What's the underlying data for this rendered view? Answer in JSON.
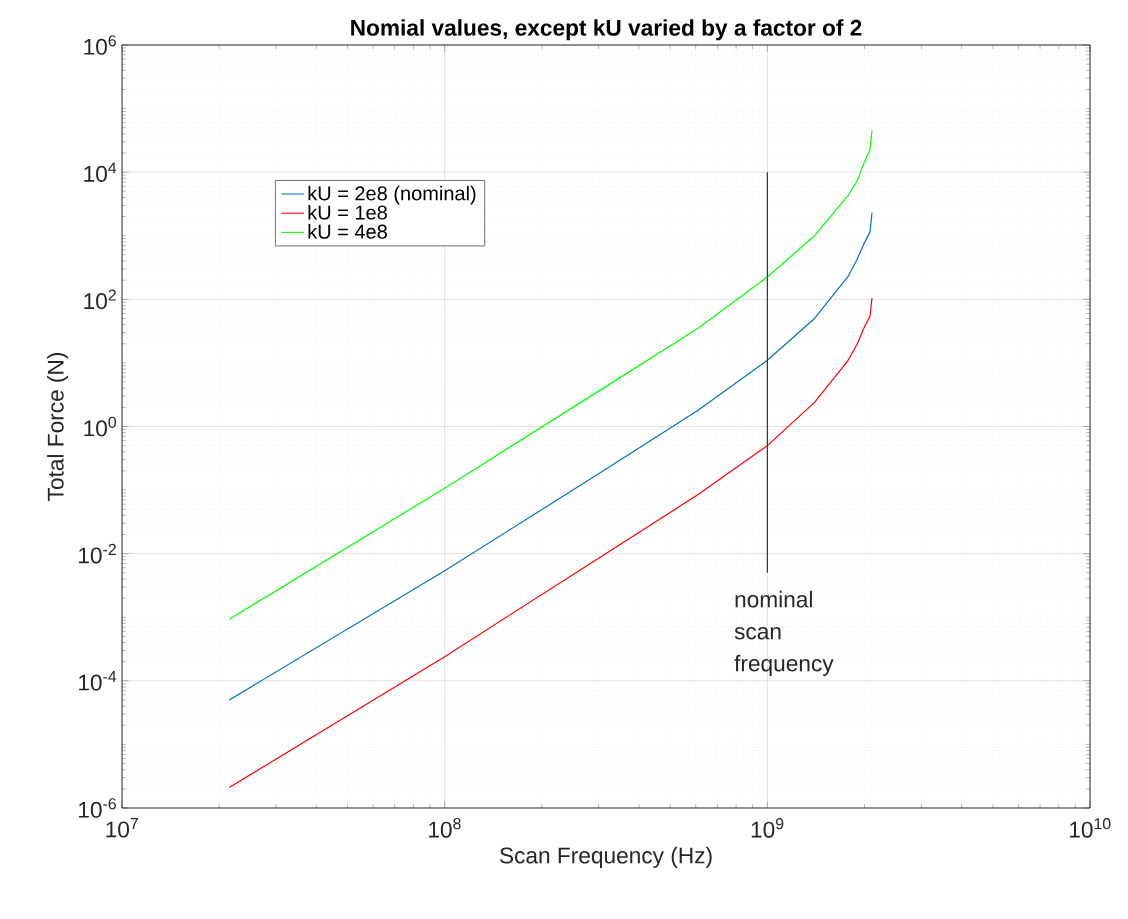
{
  "chart_data": {
    "type": "line",
    "title": "Nomial values, except kU varied by a factor of 2",
    "xlabel": "Scan Frequency (Hz)",
    "ylabel": "Total Force (N)",
    "log": "xy",
    "grid": true,
    "legend": "top left",
    "marker": "none",
    "line_style": "solid",
    "xlim": [
      10000000.0,
      10000000000.0
    ],
    "ylim": [
      1e-06,
      1000000.0
    ],
    "xticks": [
      {
        "value": 10000000.0,
        "label": "10$^{7}$"
      },
      {
        "value": 100000000.0,
        "label": "10$^{8}$"
      },
      {
        "value": 1000000000.0,
        "label": "10$^{9}$"
      },
      {
        "value": 10000000000.0,
        "label": "10$^{10}$"
      }
    ],
    "yticks": [
      {
        "value": 1e-06,
        "label": "10$^{-6}$"
      },
      {
        "value": 0.0001,
        "label": "10$^{-4}$"
      },
      {
        "value": 0.01,
        "label": "10$^{-2}$"
      },
      {
        "value": 1,
        "label": "10$^{0}$"
      },
      {
        "value": 100,
        "label": "10$^{2}$"
      },
      {
        "value": 10000.0,
        "label": "10$^{4}$"
      },
      {
        "value": 1000000.0,
        "label": "10$^{6}$"
      }
    ],
    "x": [
      21500000.0,
      100000000.0,
      300000000.0,
      610000000.0,
      1000000000.0,
      1400000000.0,
      1780000000.0,
      1900000000.0,
      2000000000.0,
      2080000000.0,
      2110000000.0
    ],
    "series": [
      {
        "name": "kU = 2e8 (nominal)",
        "color": "#0072bd",
        "values": [
          5e-05,
          0.0054,
          0.18,
          1.8,
          11,
          50,
          230,
          430,
          780,
          1150,
          2300
        ]
      },
      {
        "name": "kU = 1e8",
        "color": "#ff0000",
        "values": [
          2.1e-06,
          0.00024,
          0.0085,
          0.085,
          0.5,
          2.4,
          11,
          20,
          37,
          54,
          105
        ]
      },
      {
        "name": "kU = 4e8",
        "color": "#00ff00",
        "values": [
          0.00093,
          0.107,
          3.6,
          35,
          224,
          1000,
          4300,
          7400,
          14500,
          23000,
          45000
        ]
      },
      {
        "type": "line",
        "color": "#333333",
        "x": [
          1000000000.0,
          1000000000.0
        ],
        "values": [
          10000,
          0.005
        ]
      }
    ],
    "annotations": [
      "nominal scan frequency"
    ]
  }
}
